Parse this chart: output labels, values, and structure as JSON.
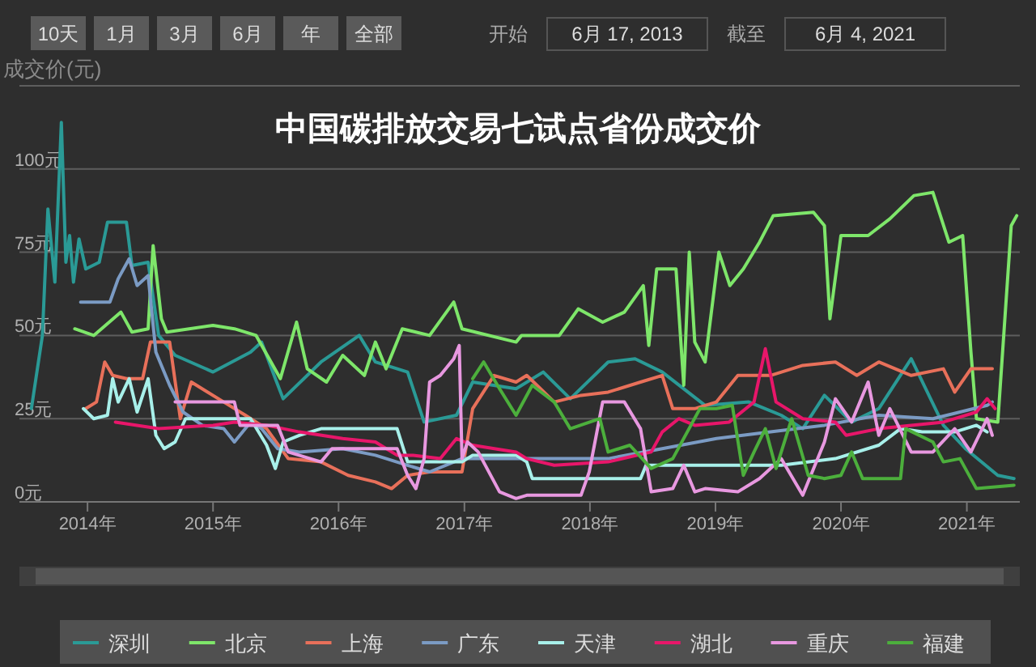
{
  "chart_data": {
    "type": "line",
    "title": "中国碳排放交易七试点省份成交价",
    "ylabel": "成交价(元)",
    "annotations": [
      "10天",
      "1月",
      "3月",
      "6月",
      "年",
      "全部",
      "开始",
      "6月 17, 2013",
      "截至",
      "6月 4, 2021"
    ],
    "xlim": [
      "2013-06-17",
      "2021-06-04"
    ],
    "xticks": [
      {
        "value": "2014-01-01",
        "label": "2014年"
      },
      {
        "value": "2015-01-01",
        "label": "2015年"
      },
      {
        "value": "2016-01-01",
        "label": "2016年"
      },
      {
        "value": "2017-01-01",
        "label": "2017年"
      },
      {
        "value": "2018-01-01",
        "label": "2018年"
      },
      {
        "value": "2019-01-01",
        "label": "2019年"
      },
      {
        "value": "2020-01-01",
        "label": "2020年"
      },
      {
        "value": "2021-01-01",
        "label": "2021年"
      }
    ],
    "ylim": [
      0,
      125
    ],
    "yticks": [
      {
        "value": 0,
        "label": "0元"
      },
      {
        "value": 25,
        "label": "25元"
      },
      {
        "value": 50,
        "label": "50元"
      },
      {
        "value": 75,
        "label": "75元"
      },
      {
        "value": 100,
        "label": "100元"
      },
      {
        "value": 125,
        "label": null
      }
    ],
    "grid": "y",
    "legend": "bottom",
    "series": [
      {
        "name": "深圳",
        "color": "#2a9a96",
        "x": [
          "2013-07-22",
          "2013-08-23",
          "2013-09-08",
          "2013-09-28",
          "2013-10-17",
          "2013-10-30",
          "2013-11-10",
          "2013-11-21",
          "2013-12-07",
          "2013-12-27",
          "2014-02-04",
          "2014-02-28",
          "2014-04-24",
          "2014-05-10",
          "2014-06-26",
          "2014-07-27",
          "2014-09-13",
          "2015-01-01",
          "2015-04-20",
          "2015-05-22",
          "2015-07-01",
          "2015-07-24",
          "2015-11-11",
          "2016-03-01",
          "2016-04-17",
          "2016-07-20",
          "2016-09-06",
          "2016-12-09",
          "2017-01-25",
          "2017-05-31",
          "2017-08-18",
          "2017-11-05",
          "2018-02-23",
          "2018-05-12",
          "2018-07-30",
          "2018-12-02",
          "2019-04-08",
          "2019-07-11",
          "2019-09-12",
          "2019-11-14",
          "2020-02-01",
          "2020-04-20",
          "2020-07-23",
          "2020-10-25",
          "2020-12-28",
          "2021-04-01",
          "2021-05-18"
        ],
        "values": [
          28,
          50,
          88,
          66,
          114,
          72,
          80,
          66,
          79,
          70,
          72,
          84,
          84,
          71,
          72,
          50,
          44,
          39,
          45,
          48,
          37,
          31,
          42,
          50,
          42,
          39,
          24,
          26,
          36,
          34,
          39,
          31,
          42,
          43,
          39,
          29,
          30,
          26,
          22,
          32,
          24,
          28,
          43,
          23,
          16,
          8,
          7
        ]
      },
      {
        "name": "北京",
        "color": "#7ee66a",
        "x": [
          "2013-11-25",
          "2014-01-19",
          "2014-04-08",
          "2014-05-10",
          "2014-06-26",
          "2014-07-11",
          "2014-08-04",
          "2014-08-20",
          "2015-01-01",
          "2015-03-04",
          "2015-05-06",
          "2015-07-16",
          "2015-09-01",
          "2015-10-02",
          "2015-11-27",
          "2016-01-13",
          "2016-03-16",
          "2016-04-17",
          "2016-05-18",
          "2016-07-04",
          "2016-09-22",
          "2016-12-01",
          "2016-12-25",
          "2017-05-31",
          "2017-06-16",
          "2017-10-04",
          "2017-11-28",
          "2018-02-07",
          "2018-04-11",
          "2018-06-05",
          "2018-06-21",
          "2018-07-14",
          "2018-09-08",
          "2018-10-01",
          "2018-10-17",
          "2018-11-02",
          "2018-12-02",
          "2019-01-11",
          "2019-02-12",
          "2019-03-23",
          "2019-05-09",
          "2019-06-18",
          "2019-10-13",
          "2019-11-14",
          "2019-11-30",
          "2020-01-01",
          "2020-03-20",
          "2020-05-22",
          "2020-07-31",
          "2020-09-24",
          "2020-11-10",
          "2020-12-20",
          "2021-01-13",
          "2021-01-29",
          "2021-04-01",
          "2021-05-10",
          "2021-05-26"
        ],
        "values": [
          52,
          50,
          57,
          51,
          52,
          77,
          55,
          51,
          53,
          52,
          50,
          37,
          54,
          40,
          36,
          44,
          38,
          48,
          40,
          52,
          50,
          60,
          52,
          48,
          50,
          50,
          58,
          54,
          57,
          65,
          47,
          70,
          70,
          35,
          75,
          48,
          42,
          75,
          65,
          70,
          78,
          86,
          87,
          83,
          55,
          80,
          80,
          85,
          92,
          93,
          78,
          80,
          45,
          25,
          24,
          83,
          86
        ]
      },
      {
        "name": "上海",
        "color": "#e8705a",
        "x": [
          "2013-12-27",
          "2014-01-27",
          "2014-02-20",
          "2014-03-15",
          "2014-04-24",
          "2014-06-10",
          "2014-07-03",
          "2014-08-28",
          "2014-09-28",
          "2014-10-30",
          "2015-02-01",
          "2015-04-05",
          "2015-06-06",
          "2015-08-08",
          "2015-11-11",
          "2016-01-29",
          "2016-04-17",
          "2016-06-03",
          "2016-07-20",
          "2016-09-22",
          "2016-12-25",
          "2017-01-25",
          "2017-03-28",
          "2017-05-31",
          "2017-07-01",
          "2017-09-19",
          "2017-12-06",
          "2018-02-23",
          "2018-05-28",
          "2018-07-30",
          "2018-08-30",
          "2018-11-02",
          "2019-01-04",
          "2019-03-07",
          "2019-06-10",
          "2019-09-12",
          "2019-12-16",
          "2020-02-16",
          "2020-04-20",
          "2020-07-23",
          "2020-10-25",
          "2020-11-27",
          "2021-01-13",
          "2021-03-16"
        ],
        "values": [
          28,
          30,
          42,
          38,
          37,
          37,
          48,
          48,
          25,
          36,
          30,
          26,
          22,
          13,
          12,
          8,
          6,
          4,
          8,
          9,
          9,
          28,
          38,
          36,
          38,
          30,
          32,
          33,
          36,
          38,
          28,
          28,
          30,
          38,
          38,
          41,
          42,
          38,
          42,
          38,
          40,
          33,
          40,
          40
        ]
      },
      {
        "name": "广东",
        "color": "#7b9bc4",
        "x": [
          "2013-12-12",
          "2014-03-07",
          "2014-03-31",
          "2014-05-02",
          "2014-05-25",
          "2014-06-26",
          "2014-07-19",
          "2014-08-28",
          "2014-10-06",
          "2014-12-01",
          "2015-02-01",
          "2015-03-04",
          "2015-04-20",
          "2015-05-22",
          "2015-07-08",
          "2015-09-09",
          "2016-01-13",
          "2016-04-17",
          "2016-07-20",
          "2016-09-22",
          "2016-12-25",
          "2017-05-31",
          "2017-09-19",
          "2018-02-23",
          "2018-07-30",
          "2019-01-04",
          "2019-06-10",
          "2019-11-14",
          "2020-04-20",
          "2020-09-24",
          "2021-03-01",
          "2021-03-16"
        ],
        "values": [
          60,
          60,
          67,
          73,
          65,
          68,
          45,
          35,
          27,
          23,
          22,
          18,
          24,
          22,
          16,
          15,
          16,
          14,
          11,
          9,
          13,
          13,
          13,
          13,
          16,
          19,
          21,
          23,
          26,
          25,
          29,
          30
        ]
      },
      {
        "name": "天津",
        "color": "#a8f0ea",
        "x": [
          "2013-12-20",
          "2014-01-19",
          "2014-02-28",
          "2014-03-15",
          "2014-03-31",
          "2014-05-02",
          "2014-05-25",
          "2014-06-26",
          "2014-07-19",
          "2014-08-12",
          "2014-09-13",
          "2014-10-13",
          "2015-02-01",
          "2015-04-20",
          "2015-06-06",
          "2015-07-01",
          "2015-07-24",
          "2015-09-09",
          "2015-11-11",
          "2016-06-19",
          "2016-07-20",
          "2016-12-25",
          "2017-01-25",
          "2017-05-31",
          "2017-07-01",
          "2017-07-17",
          "2018-05-28",
          "2018-06-13",
          "2019-07-11",
          "2019-12-16",
          "2020-04-20",
          "2020-06-22",
          "2020-08-24",
          "2020-11-27",
          "2021-01-29",
          "2021-03-01"
        ],
        "values": [
          28,
          25,
          26,
          37,
          30,
          37,
          27,
          37,
          20,
          16,
          18,
          25,
          25,
          25,
          17,
          10,
          18,
          20,
          22,
          22,
          12,
          12,
          14,
          14,
          12,
          7,
          7,
          11,
          11,
          13,
          17,
          22,
          21,
          21,
          23,
          21
        ]
      },
      {
        "name": "湖北",
        "color": "#e8166a",
        "x": [
          "2014-03-23",
          "2014-07-27",
          "2015-01-01",
          "2015-03-04",
          "2015-06-06",
          "2015-09-09",
          "2016-01-13",
          "2016-04-17",
          "2016-06-19",
          "2016-08-05",
          "2016-10-23",
          "2016-12-09",
          "2017-01-25",
          "2017-05-31",
          "2017-07-01",
          "2017-09-19",
          "2018-02-23",
          "2018-06-28",
          "2018-07-30",
          "2018-09-16",
          "2018-11-02",
          "2019-02-10",
          "2019-04-23",
          "2019-05-26",
          "2019-06-26",
          "2019-09-12",
          "2019-12-16",
          "2020-01-16",
          "2020-04-20",
          "2020-07-23",
          "2020-10-25",
          "2021-01-29",
          "2021-03-01",
          "2021-03-24"
        ],
        "values": [
          24,
          22,
          23,
          24,
          23,
          21,
          19,
          18,
          14,
          14,
          13,
          19,
          17,
          15,
          13,
          11,
          12,
          15,
          21,
          25,
          23,
          24,
          30,
          46,
          30,
          25,
          24,
          20,
          22,
          23,
          24,
          27,
          31,
          28
        ]
      },
      {
        "name": "重庆",
        "color": "#e898e0",
        "x": [
          "2014-09-13",
          "2015-03-04",
          "2015-03-20",
          "2015-07-08",
          "2015-08-08",
          "2015-11-11",
          "2015-12-13",
          "2016-06-19",
          "2016-07-20",
          "2016-08-13",
          "2016-09-06",
          "2016-09-22",
          "2016-10-23",
          "2016-12-01",
          "2016-12-17",
          "2016-12-25",
          "2017-01-10",
          "2017-02-10",
          "2017-04-13",
          "2017-05-31",
          "2017-07-01",
          "2017-12-06",
          "2017-12-30",
          "2018-02-07",
          "2018-04-11",
          "2018-05-28",
          "2018-06-28",
          "2018-08-30",
          "2018-10-01",
          "2018-11-02",
          "2018-12-02",
          "2019-03-07",
          "2019-05-09",
          "2019-07-11",
          "2019-09-12",
          "2019-11-14",
          "2019-12-16",
          "2020-02-01",
          "2020-03-20",
          "2020-04-20",
          "2020-05-22",
          "2020-07-23",
          "2020-09-24",
          "2020-11-27",
          "2021-01-13",
          "2021-03-01",
          "2021-03-16"
        ],
        "values": [
          30,
          30,
          23,
          23,
          15,
          12,
          16,
          16,
          8,
          4,
          13,
          36,
          38,
          43,
          47,
          13,
          18,
          15,
          3,
          1,
          2,
          2,
          9,
          30,
          30,
          22,
          3,
          4,
          11,
          3,
          4,
          3,
          7,
          13,
          2,
          18,
          31,
          24,
          36,
          20,
          28,
          15,
          15,
          22,
          15,
          25,
          20
        ]
      },
      {
        "name": "福建",
        "color": "#4caf3c",
        "x": [
          "2017-01-25",
          "2017-02-26",
          "2017-04-13",
          "2017-05-31",
          "2017-07-17",
          "2017-09-19",
          "2017-11-05",
          "2018-01-30",
          "2018-02-23",
          "2018-04-27",
          "2018-06-28",
          "2018-08-30",
          "2018-11-17",
          "2019-01-04",
          "2019-02-19",
          "2019-03-23",
          "2019-04-23",
          "2019-05-26",
          "2019-06-26",
          "2019-08-11",
          "2019-09-28",
          "2019-11-14",
          "2020-01-01",
          "2020-02-01",
          "2020-03-04",
          "2020-06-22",
          "2020-07-07",
          "2020-09-24",
          "2020-10-25",
          "2020-12-12",
          "2021-01-29",
          "2021-05-18"
        ],
        "values": [
          37,
          42,
          34,
          26,
          35,
          30,
          22,
          25,
          15,
          17,
          10,
          13,
          28,
          28,
          29,
          8,
          15,
          22,
          10,
          25,
          8,
          7,
          8,
          15,
          7,
          7,
          22,
          18,
          12,
          13,
          4,
          5
        ]
      }
    ]
  }
}
